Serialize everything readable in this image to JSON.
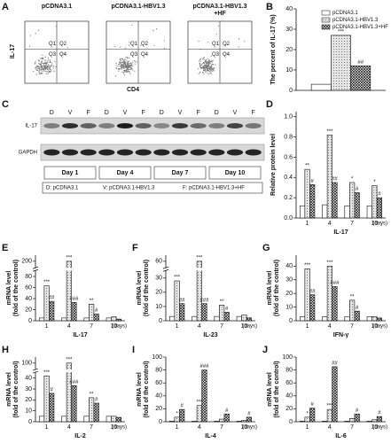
{
  "flow_cytometry": {
    "panel": "A",
    "samples": [
      [
        "pCDNA3.1"
      ],
      [
        "pCDNA3.1-HBV1.3"
      ],
      [
        "pCDNA3.1-HBV1.3",
        "+HF"
      ]
    ],
    "ylabel": "IL-17",
    "xlabel": "CD4",
    "quadrants": [
      "Q1",
      "Q2",
      "Q3",
      "Q4"
    ]
  },
  "western_blot": {
    "panel": "C",
    "lanes": [
      "D",
      "V",
      "F",
      "D",
      "V",
      "F",
      "D",
      "V",
      "F",
      "D",
      "V",
      "F"
    ],
    "rows": [
      "IL-17",
      "GAPDH"
    ],
    "days": [
      "Day 1",
      "Day 4",
      "Day 7",
      "Day 10"
    ],
    "key": [
      "D: pCDNA3.1",
      "V: pCDNA3.1-HBV1.3",
      "F: pCDNA3.1-HBV1.3+HF"
    ]
  },
  "chart_data": [
    {
      "panel": "B",
      "type": "bar",
      "ylabel": [
        "The percent of IL-17 (%)"
      ],
      "categories": [
        null
      ],
      "legend": "top-right",
      "series": [
        {
          "name": "pCDNA3.1",
          "color": "#ffffff",
          "pattern": "none",
          "values": [
            3
          ],
          "significance": [
            null
          ]
        },
        {
          "name": "pCDNA3.1-HBV1.3",
          "color": "#e4e4e4",
          "pattern": "dots",
          "values": [
            27
          ],
          "significance": [
            "***"
          ]
        },
        {
          "name": "pCDNA3.1-HBV1.3+HF",
          "color": "#ffffff",
          "pattern": "crosshatch",
          "values": [
            12
          ],
          "significance": [
            "##"
          ]
        }
      ],
      "ylim": [
        0,
        40
      ],
      "yticks": [
        0,
        10,
        20,
        30,
        40
      ]
    },
    {
      "panel": "D",
      "type": "bar",
      "ylabel": [
        "Relative protein level"
      ],
      "xlabel": "IL-17",
      "xunit": "(days)",
      "categories": [
        "1",
        "4",
        "7",
        "10"
      ],
      "series": [
        {
          "name": "pCDNA3.1",
          "color": "#ffffff",
          "pattern": "none",
          "values": [
            0.12,
            0.13,
            0.12,
            0.12
          ],
          "significance": [
            null,
            null,
            null,
            null
          ]
        },
        {
          "name": "pCDNA3.1-HBV1.3",
          "color": "#e4e4e4",
          "pattern": "dots",
          "values": [
            0.48,
            0.82,
            0.35,
            0.32
          ],
          "significance": [
            "**",
            "***",
            "*",
            "*"
          ]
        },
        {
          "name": "pCDNA3.1-HBV1.3+HF",
          "color": "#ffffff",
          "pattern": "crosshatch",
          "values": [
            0.33,
            0.35,
            0.25,
            0.2
          ],
          "significance": [
            "#",
            "##",
            "#",
            "#"
          ]
        }
      ],
      "ylim": [
        0,
        1.05
      ],
      "yticks": [
        {
          "value": 0,
          "label": "0.0"
        },
        0.2,
        0.4,
        0.6,
        0.8,
        {
          "value": 1,
          "label": "1.0"
        }
      ]
    },
    {
      "panel": "E",
      "type": "bar",
      "ylabel": [
        "mRNA level",
        "(fold of the control)"
      ],
      "xlabel": "IL-17",
      "xunit": "(days)",
      "categories": [
        "1",
        "4",
        "7",
        "10"
      ],
      "series": [
        {
          "name": "pCDNA3.1",
          "color": "#ffffff",
          "pattern": "none",
          "values": [
            5,
            5,
            5,
            5
          ],
          "significance": [
            null,
            null,
            null,
            null
          ]
        },
        {
          "name": "pCDNA3.1-HBV1.3",
          "color": "#e4e4e4",
          "pattern": "dots",
          "values": [
            63,
            200,
            30,
            7
          ],
          "significance": [
            "***",
            "***",
            "**",
            null
          ]
        },
        {
          "name": "pCDNA3.1-HBV1.3+HF",
          "color": "#ffffff",
          "pattern": "crosshatch",
          "values": [
            35,
            33,
            12,
            3
          ],
          "significance": [
            "##",
            "###",
            "#",
            null
          ]
        }
      ],
      "ylim": [
        0,
        210
      ],
      "ybreak": [
        90,
        190
      ],
      "yticks": [
        0,
        20,
        40,
        60,
        80,
        200
      ]
    },
    {
      "panel": "F",
      "type": "bar",
      "ylabel": [
        "mRNA level",
        "(fold of the control)"
      ],
      "xlabel": "IL-23",
      "xunit": "(days)",
      "categories": [
        "1",
        "4",
        "7",
        "10"
      ],
      "series": [
        {
          "name": "pCDNA3.1",
          "color": "#ffffff",
          "pattern": "none",
          "values": [
            3,
            3,
            3,
            3
          ],
          "significance": [
            null,
            null,
            null,
            null
          ]
        },
        {
          "name": "pCDNA3.1-HBV1.3",
          "color": "#e4e4e4",
          "pattern": "dots",
          "values": [
            28,
            60,
            11,
            4
          ],
          "significance": [
            "***",
            "***",
            "**",
            null
          ]
        },
        {
          "name": "pCDNA3.1-HBV1.3+HF",
          "color": "#ffffff",
          "pattern": "crosshatch",
          "values": [
            12,
            12,
            6,
            2
          ],
          "significance": [
            "##",
            "###",
            "#",
            null
          ]
        }
      ],
      "ylim": [
        0,
        65
      ],
      "ybreak": [
        35,
        55
      ],
      "yticks": [
        0,
        10,
        20,
        30,
        60
      ]
    },
    {
      "panel": "G",
      "type": "bar",
      "ylabel": [
        "mRNA level",
        "(fold of the control)"
      ],
      "xlabel": "IFN-γ",
      "xunit": "(days)",
      "categories": [
        "1",
        "4",
        "7",
        "10"
      ],
      "series": [
        {
          "name": "pCDNA3.1",
          "color": "#ffffff",
          "pattern": "none",
          "values": [
            3,
            3,
            3,
            3
          ],
          "significance": [
            null,
            null,
            null,
            null
          ]
        },
        {
          "name": "pCDNA3.1-HBV1.3",
          "color": "#e4e4e4",
          "pattern": "dots",
          "values": [
            38,
            40,
            15,
            3
          ],
          "significance": [
            "***",
            "***",
            "**",
            null
          ]
        },
        {
          "name": "pCDNA3.1-HBV1.3+HF",
          "color": "#ffffff",
          "pattern": "crosshatch",
          "values": [
            19,
            25,
            7,
            2
          ],
          "significance": [
            "##",
            "###",
            "#",
            null
          ]
        }
      ],
      "ylim": [
        0,
        48
      ],
      "yticks": [
        0,
        10,
        20,
        30,
        40
      ]
    },
    {
      "panel": "H",
      "type": "bar",
      "ylabel": [
        "mRNA level",
        "(fold of the control)"
      ],
      "xlabel": "IL-2",
      "xunit": "(days)",
      "categories": [
        "1",
        "4",
        "7",
        "10"
      ],
      "series": [
        {
          "name": "pCDNA3.1",
          "color": "#ffffff",
          "pattern": "none",
          "values": [
            5,
            5,
            5,
            5
          ],
          "significance": [
            null,
            null,
            null,
            null
          ]
        },
        {
          "name": "pCDNA3.1-HBV1.3",
          "color": "#e4e4e4",
          "pattern": "dots",
          "values": [
            42,
            100,
            22,
            5
          ],
          "significance": [
            "***",
            "***",
            "**",
            null
          ]
        },
        {
          "name": "pCDNA3.1-HBV1.3+HF",
          "color": "#ffffff",
          "pattern": "crosshatch",
          "values": [
            26,
            33,
            17,
            4
          ],
          "significance": [
            "#",
            "###",
            "#",
            null
          ]
        }
      ],
      "ylim": [
        0,
        105
      ],
      "ybreak": [
        45,
        95
      ],
      "yticks": [
        0,
        10,
        20,
        30,
        40,
        100
      ]
    },
    {
      "panel": "I",
      "type": "bar",
      "ylabel": [
        "mRNA level",
        "(fold of the control)"
      ],
      "xlabel": "IL-4",
      "xunit": "(days)",
      "categories": [
        "1",
        "4",
        "7",
        "10"
      ],
      "series": [
        {
          "name": "pCDNA3.1",
          "color": "#ffffff",
          "pattern": "none",
          "values": [
            1,
            1,
            1,
            1
          ],
          "significance": [
            null,
            null,
            null,
            null
          ]
        },
        {
          "name": "pCDNA3.1-HBV1.3",
          "color": "#e4e4e4",
          "pattern": "dots",
          "values": [
            7,
            25,
            4,
            2
          ],
          "significance": [
            "*",
            "***",
            null,
            null
          ]
        },
        {
          "name": "pCDNA3.1-HBV1.3+HF",
          "color": "#ffffff",
          "pattern": "crosshatch",
          "values": [
            19,
            80,
            12,
            7
          ],
          "significance": [
            "#",
            "###",
            "#",
            "#"
          ]
        }
      ],
      "ylim": [
        0,
        100
      ],
      "yticks": [
        0,
        20,
        40,
        60,
        80,
        100
      ]
    },
    {
      "panel": "J",
      "type": "bar",
      "ylabel": [
        "mRNA level",
        "(fold of the control)"
      ],
      "xlabel": "IL-6",
      "xunit": "(days)",
      "categories": [
        "1",
        "4",
        "7",
        "10"
      ],
      "series": [
        {
          "name": "pCDNA3.1",
          "color": "#ffffff",
          "pattern": "none",
          "values": [
            1,
            1,
            1,
            1
          ],
          "significance": [
            null,
            null,
            null,
            null
          ]
        },
        {
          "name": "pCDNA3.1-HBV1.3",
          "color": "#e4e4e4",
          "pattern": "dots",
          "values": [
            7,
            19,
            5,
            3
          ],
          "significance": [
            "*",
            "***",
            null,
            null
          ]
        },
        {
          "name": "pCDNA3.1-HBV1.3+HF",
          "color": "#ffffff",
          "pattern": "crosshatch",
          "values": [
            21,
            85,
            12,
            8
          ],
          "significance": [
            "#",
            "##",
            "#",
            "#"
          ]
        }
      ],
      "ylim": [
        0,
        100
      ],
      "yticks": [
        0,
        20,
        40,
        60,
        80,
        100
      ]
    }
  ]
}
